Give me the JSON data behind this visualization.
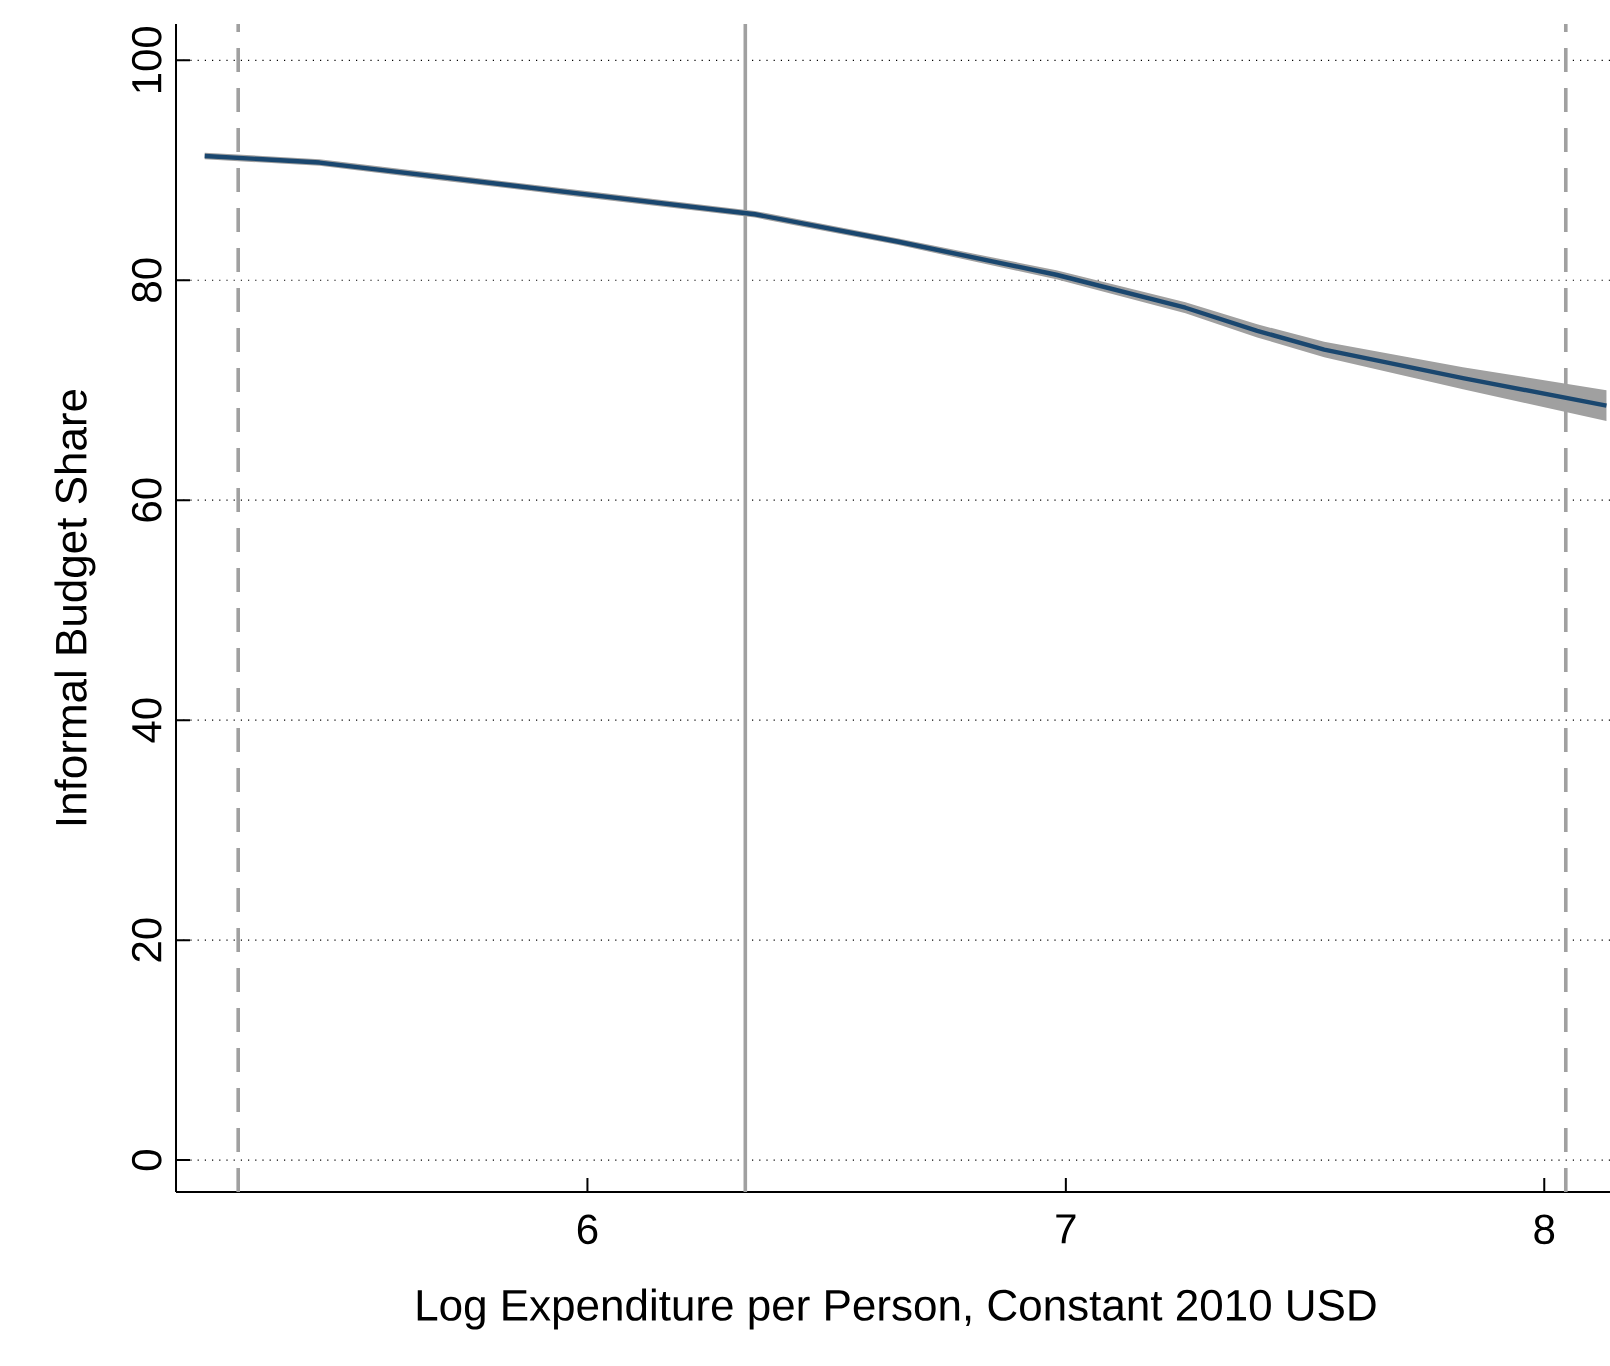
{
  "chart_data": {
    "type": "line",
    "xlabel": "Log Expenditure per Person, Constant 2010 USD",
    "ylabel": "Informal Budget Share",
    "xlim": [
      5.14,
      8.15
    ],
    "xticks": [
      6,
      7,
      8
    ],
    "ylim": [
      -2.9,
      103.3
    ],
    "yticks": [
      0,
      20,
      40,
      60,
      80,
      100
    ],
    "grid": "y",
    "marker": "none",
    "line_style": "solid",
    "series": [
      {
        "color": "#1a476f",
        "x": [
          5.2,
          5.44,
          5.69,
          5.98,
          6.35,
          6.65,
          6.98,
          7.25,
          7.4,
          7.54,
          7.83,
          8.13
        ],
        "values": [
          91.3,
          90.7,
          89.4,
          87.9,
          86.0,
          83.5,
          80.5,
          77.5,
          75.4,
          73.7,
          71.1,
          68.6
        ],
        "lower": [
          91.0,
          90.4,
          89.1,
          87.6,
          85.7,
          83.2,
          80.1,
          77.0,
          74.8,
          73.0,
          70.1,
          67.2
        ],
        "upper": [
          91.6,
          91.0,
          89.7,
          88.2,
          86.3,
          83.8,
          80.9,
          78.0,
          76.0,
          74.4,
          72.1,
          70.0
        ]
      }
    ],
    "ref_lines": [
      {
        "axis": "x",
        "value": 5.27,
        "color": "#a0a0a0",
        "line_style": "dashed"
      },
      {
        "axis": "x",
        "value": 6.33,
        "color": "#a0a0a0",
        "line_style": "solid"
      },
      {
        "axis": "x",
        "value": 8.045,
        "color": "#a0a0a0",
        "line_style": "dashed"
      }
    ]
  }
}
